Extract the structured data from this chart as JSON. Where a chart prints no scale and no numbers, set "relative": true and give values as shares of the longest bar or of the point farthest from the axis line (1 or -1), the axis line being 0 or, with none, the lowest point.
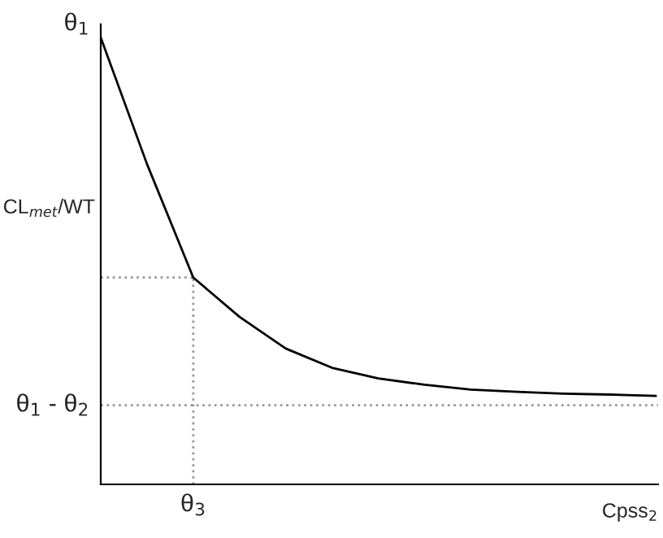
{
  "chart_data": {
    "type": "line",
    "relative": true,
    "xlabel": "Cpss$_{2}$",
    "ylabel": "CL$_{met}$/WT",
    "annotations": [
      "θ$_{1}$",
      {
        "text": "θ$_{3}$",
        "y": 0.463
      }
    ],
    "categories": [
      null,
      null,
      null,
      null,
      null,
      null,
      null,
      null,
      null,
      null,
      null,
      null,
      null
    ],
    "series": [
      {
        "color": "#000000",
        "values": [
          1.0,
          0.717,
          0.463,
          0.375,
          0.304,
          0.261,
          0.237,
          0.223,
          0.212,
          0.207,
          0.203,
          0.201,
          0.198
        ]
      }
    ],
    "ref_lines": [
      {
        "axis": "y",
        "value": 0.177,
        "label": "θ$_{1}$ - θ$_{2}$",
        "color": "#999999",
        "line_style": "dotted"
      },
      {
        "axis": "y",
        "value": 0.463,
        "color": "#999999",
        "line_style": "dotted"
      }
    ],
    "legend": false,
    "marker": "none",
    "line_style": "solid"
  }
}
